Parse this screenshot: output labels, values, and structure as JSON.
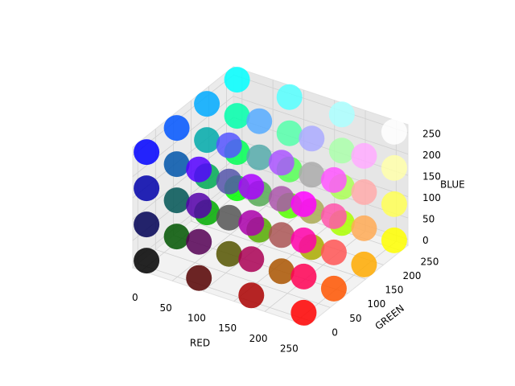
{
  "chart_data": {
    "type": "scatter3d",
    "xlabel": "RED",
    "ylabel": "GREEN",
    "zlabel": "BLUE",
    "xlim": [
      0,
      255
    ],
    "ylim": [
      0,
      255
    ],
    "zlim": [
      0,
      255
    ],
    "xticks": [
      0,
      50,
      100,
      150,
      200,
      250
    ],
    "yticks": [
      0,
      50,
      100,
      150,
      200,
      250
    ],
    "zticks": [
      0,
      50,
      100,
      150,
      200,
      250
    ],
    "grid": true,
    "x": [
      0,
      0,
      0,
      0,
      0,
      0,
      0,
      0,
      0,
      0,
      0,
      0,
      0,
      0,
      0,
      0,
      85,
      85,
      85,
      85,
      85,
      85,
      85,
      85,
      85,
      85,
      85,
      85,
      85,
      85,
      85,
      85,
      170,
      170,
      170,
      170,
      170,
      170,
      170,
      170,
      170,
      170,
      170,
      170,
      170,
      170,
      170,
      170,
      255,
      255,
      255,
      255,
      255,
      255,
      255,
      255,
      255,
      255,
      255,
      255,
      255,
      255,
      255,
      255
    ],
    "y": [
      0,
      0,
      0,
      0,
      85,
      85,
      85,
      85,
      170,
      170,
      170,
      170,
      255,
      255,
      255,
      255,
      0,
      0,
      0,
      0,
      85,
      85,
      85,
      85,
      170,
      170,
      170,
      170,
      255,
      255,
      255,
      255,
      0,
      0,
      0,
      0,
      85,
      85,
      85,
      85,
      170,
      170,
      170,
      170,
      255,
      255,
      255,
      255,
      0,
      0,
      0,
      0,
      85,
      85,
      85,
      85,
      170,
      170,
      170,
      170,
      255,
      255,
      255,
      255
    ],
    "z": [
      0,
      85,
      170,
      255,
      0,
      85,
      170,
      255,
      0,
      85,
      170,
      255,
      0,
      85,
      170,
      255,
      0,
      85,
      170,
      255,
      0,
      85,
      170,
      255,
      0,
      85,
      170,
      255,
      0,
      85,
      170,
      255,
      0,
      85,
      170,
      255,
      0,
      85,
      170,
      255,
      0,
      85,
      170,
      255,
      0,
      85,
      170,
      255,
      0,
      85,
      170,
      255,
      0,
      85,
      170,
      255,
      0,
      85,
      170,
      255,
      0,
      85,
      170,
      255
    ]
  }
}
